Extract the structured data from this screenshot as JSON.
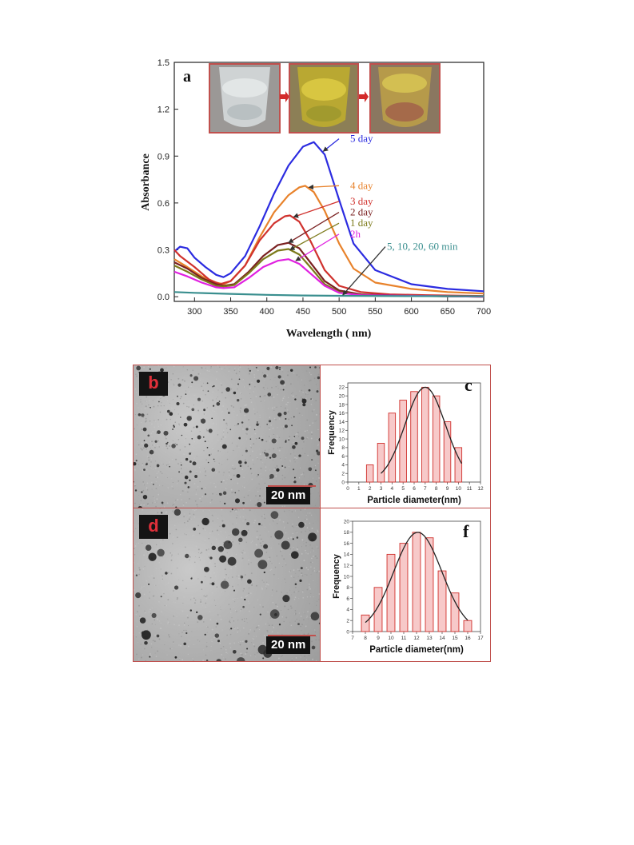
{
  "chart_data": [
    {
      "id": "a",
      "type": "line",
      "panel_label": "a",
      "xlabel": "Wavelength ( nm)",
      "ylabel": "Absorbance",
      "xlim": [
        272,
        700
      ],
      "ylim": [
        -0.03,
        1.5
      ],
      "xticks": [
        300,
        350,
        400,
        450,
        500,
        550,
        600,
        650,
        700
      ],
      "yticks": [
        "0.0",
        "0.3",
        "0.6",
        "0.9",
        "1.2",
        "1.5"
      ],
      "grid": false,
      "series": [
        {
          "name": "5 day",
          "color": "#2b2be0",
          "points": [
            [
              272,
              0.29
            ],
            [
              280,
              0.32
            ],
            [
              290,
              0.31
            ],
            [
              300,
              0.25
            ],
            [
              315,
              0.19
            ],
            [
              330,
              0.14
            ],
            [
              340,
              0.125
            ],
            [
              350,
              0.15
            ],
            [
              370,
              0.26
            ],
            [
              390,
              0.45
            ],
            [
              410,
              0.66
            ],
            [
              430,
              0.84
            ],
            [
              450,
              0.96
            ],
            [
              465,
              0.99
            ],
            [
              480,
              0.91
            ],
            [
              500,
              0.62
            ],
            [
              520,
              0.34
            ],
            [
              550,
              0.17
            ],
            [
              600,
              0.08
            ],
            [
              650,
              0.05
            ],
            [
              700,
              0.035
            ]
          ]
        },
        {
          "name": "4 day",
          "color": "#e8822b",
          "points": [
            [
              272,
              0.24
            ],
            [
              290,
              0.19
            ],
            [
              310,
              0.13
            ],
            [
              330,
              0.09
            ],
            [
              340,
              0.08
            ],
            [
              350,
              0.1
            ],
            [
              370,
              0.2
            ],
            [
              390,
              0.38
            ],
            [
              410,
              0.54
            ],
            [
              430,
              0.65
            ],
            [
              445,
              0.7
            ],
            [
              453,
              0.71
            ],
            [
              465,
              0.67
            ],
            [
              480,
              0.55
            ],
            [
              500,
              0.34
            ],
            [
              520,
              0.18
            ],
            [
              550,
              0.09
            ],
            [
              600,
              0.05
            ],
            [
              650,
              0.03
            ],
            [
              700,
              0.02
            ]
          ]
        },
        {
          "name": "3 day",
          "color": "#d0312d",
          "points": [
            [
              272,
              0.3
            ],
            [
              280,
              0.26
            ],
            [
              300,
              0.19
            ],
            [
              320,
              0.11
            ],
            [
              335,
              0.08
            ],
            [
              350,
              0.1
            ],
            [
              370,
              0.2
            ],
            [
              390,
              0.36
            ],
            [
              410,
              0.47
            ],
            [
              425,
              0.515
            ],
            [
              432,
              0.52
            ],
            [
              445,
              0.48
            ],
            [
              460,
              0.36
            ],
            [
              480,
              0.17
            ],
            [
              500,
              0.07
            ],
            [
              530,
              0.03
            ],
            [
              570,
              0.015
            ],
            [
              620,
              0.01
            ],
            [
              700,
              0.005
            ]
          ]
        },
        {
          "name": "2 day",
          "color": "#7a2020",
          "points": [
            [
              272,
              0.22
            ],
            [
              290,
              0.18
            ],
            [
              310,
              0.12
            ],
            [
              330,
              0.08
            ],
            [
              340,
              0.07
            ],
            [
              355,
              0.08
            ],
            [
              375,
              0.16
            ],
            [
              395,
              0.26
            ],
            [
              415,
              0.33
            ],
            [
              430,
              0.345
            ],
            [
              445,
              0.31
            ],
            [
              460,
              0.22
            ],
            [
              480,
              0.1
            ],
            [
              500,
              0.04
            ],
            [
              530,
              0.015
            ],
            [
              600,
              0.005
            ],
            [
              700,
              0.0
            ]
          ]
        },
        {
          "name": "1 day",
          "color": "#7c7a1a",
          "points": [
            [
              272,
              0.2
            ],
            [
              290,
              0.16
            ],
            [
              310,
              0.11
            ],
            [
              330,
              0.07
            ],
            [
              340,
              0.065
            ],
            [
              355,
              0.075
            ],
            [
              375,
              0.15
            ],
            [
              395,
              0.24
            ],
            [
              415,
              0.295
            ],
            [
              430,
              0.305
            ],
            [
              445,
              0.27
            ],
            [
              460,
              0.19
            ],
            [
              480,
              0.08
            ],
            [
              500,
              0.03
            ],
            [
              530,
              0.01
            ],
            [
              700,
              0.0
            ]
          ]
        },
        {
          "name": "2h",
          "color": "#e020e0",
          "points": [
            [
              272,
              0.16
            ],
            [
              290,
              0.13
            ],
            [
              310,
              0.09
            ],
            [
              330,
              0.06
            ],
            [
              340,
              0.055
            ],
            [
              355,
              0.06
            ],
            [
              375,
              0.12
            ],
            [
              395,
              0.19
            ],
            [
              415,
              0.23
            ],
            [
              430,
              0.24
            ],
            [
              445,
              0.21
            ],
            [
              460,
              0.15
            ],
            [
              480,
              0.07
            ],
            [
              500,
              0.025
            ],
            [
              530,
              0.01
            ],
            [
              700,
              0.0
            ]
          ]
        },
        {
          "name": "5, 10, 20, 60 min",
          "color": "#3a8f8f",
          "points": [
            [
              272,
              0.03
            ],
            [
              300,
              0.025
            ],
            [
              350,
              0.018
            ],
            [
              400,
              0.012
            ],
            [
              450,
              0.008
            ],
            [
              500,
              0.006
            ],
            [
              600,
              0.004
            ],
            [
              700,
              0.003
            ]
          ]
        }
      ],
      "legend_labels": [
        "5 day",
        "4 day",
        "3 day",
        "2 day",
        "1 day",
        "2h",
        "5, 10, 20, 60 min"
      ]
    },
    {
      "id": "c",
      "type": "bar",
      "panel_label": "c",
      "xlabel": "Particle diameter(nm)",
      "ylabel": "Frequency",
      "xlim": [
        0,
        12
      ],
      "ylim": [
        0,
        23
      ],
      "xticks": [
        "0",
        "1",
        "2",
        "3",
        "4",
        "5",
        "6",
        "7",
        "8",
        "9",
        "10",
        "11",
        "12"
      ],
      "yticks": [
        "0",
        "2",
        "4",
        "6",
        "8",
        "10",
        "12",
        "14",
        "16",
        "18",
        "20",
        "22"
      ],
      "bins": [
        2,
        3,
        4,
        5,
        6,
        7,
        8,
        9,
        10
      ],
      "values": [
        4,
        9,
        16,
        19,
        21,
        22,
        20,
        14,
        8
      ],
      "fit_peak": [
        7,
        22
      ],
      "fit_range": [
        3,
        10.3
      ]
    },
    {
      "id": "f",
      "type": "bar",
      "panel_label": "f",
      "xlabel": "Particle diameter(nm)",
      "ylabel": "Frequency",
      "xlim": [
        7,
        17
      ],
      "ylim": [
        0,
        20
      ],
      "xticks": [
        "7",
        "8",
        "9",
        "10",
        "11",
        "12",
        "13",
        "14",
        "15",
        "16",
        "17"
      ],
      "yticks": [
        "0",
        "2",
        "4",
        "6",
        "8",
        "10",
        "12",
        "14",
        "16",
        "18",
        "20"
      ],
      "bins": [
        8,
        9,
        10,
        11,
        12,
        13,
        14,
        15,
        16
      ],
      "values": [
        3,
        8,
        14,
        16,
        18,
        17,
        11,
        7,
        2
      ],
      "fit_peak": [
        12.1,
        18
      ],
      "fit_range": [
        8,
        16
      ]
    }
  ],
  "tem": {
    "b_label": "b",
    "d_label": "d",
    "scale_text": "20 nm"
  }
}
